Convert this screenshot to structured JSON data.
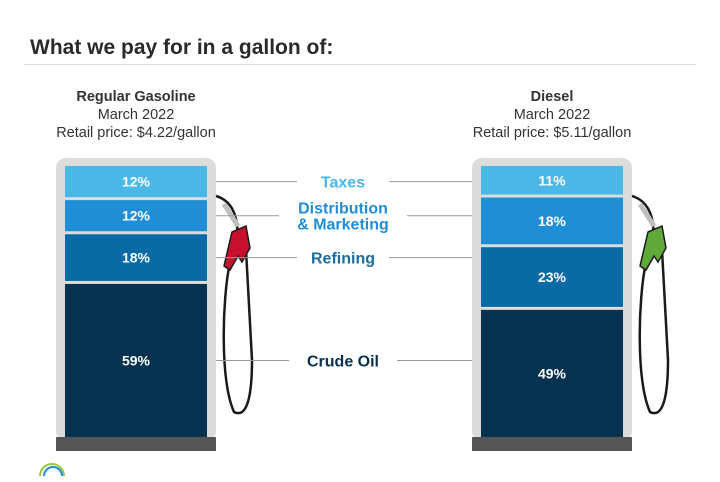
{
  "page": {
    "title": "What we pay for in a gallon of:"
  },
  "chart_data": {
    "type": "bar",
    "stacked": true,
    "components": [
      "Crude Oil",
      "Refining",
      "Distribution & Marketing",
      "Taxes"
    ],
    "labels": [
      "Crude Oil",
      "Refining",
      "Distribution\n& Marketing",
      "Taxes"
    ],
    "label_colors": [
      "#06304d",
      "#1a6ea0",
      "#1f8ed6",
      "#4ab8e6"
    ],
    "colors": {
      "Taxes": "#4ab8e6",
      "Distribution & Marketing": "#1f8ed6",
      "Refining": "#0a6aa6",
      "Crude Oil": "#06314f"
    },
    "pumps": [
      {
        "name": "Regular Gasoline",
        "date": "March 2022",
        "price": "Retail price: $4.22/gallon",
        "nozzle_color": "#c8102e",
        "values": {
          "Taxes": 12,
          "Distribution & Marketing": 12,
          "Refining": 18,
          "Crude Oil": 59
        }
      },
      {
        "name": "Diesel",
        "date": "March 2022",
        "price": "Retail price: $5.11/gallon",
        "nozzle_color": "#5fa83a",
        "values": {
          "Taxes": 11,
          "Distribution & Marketing": 18,
          "Refining": 23,
          "Crude Oil": 49
        }
      }
    ]
  }
}
